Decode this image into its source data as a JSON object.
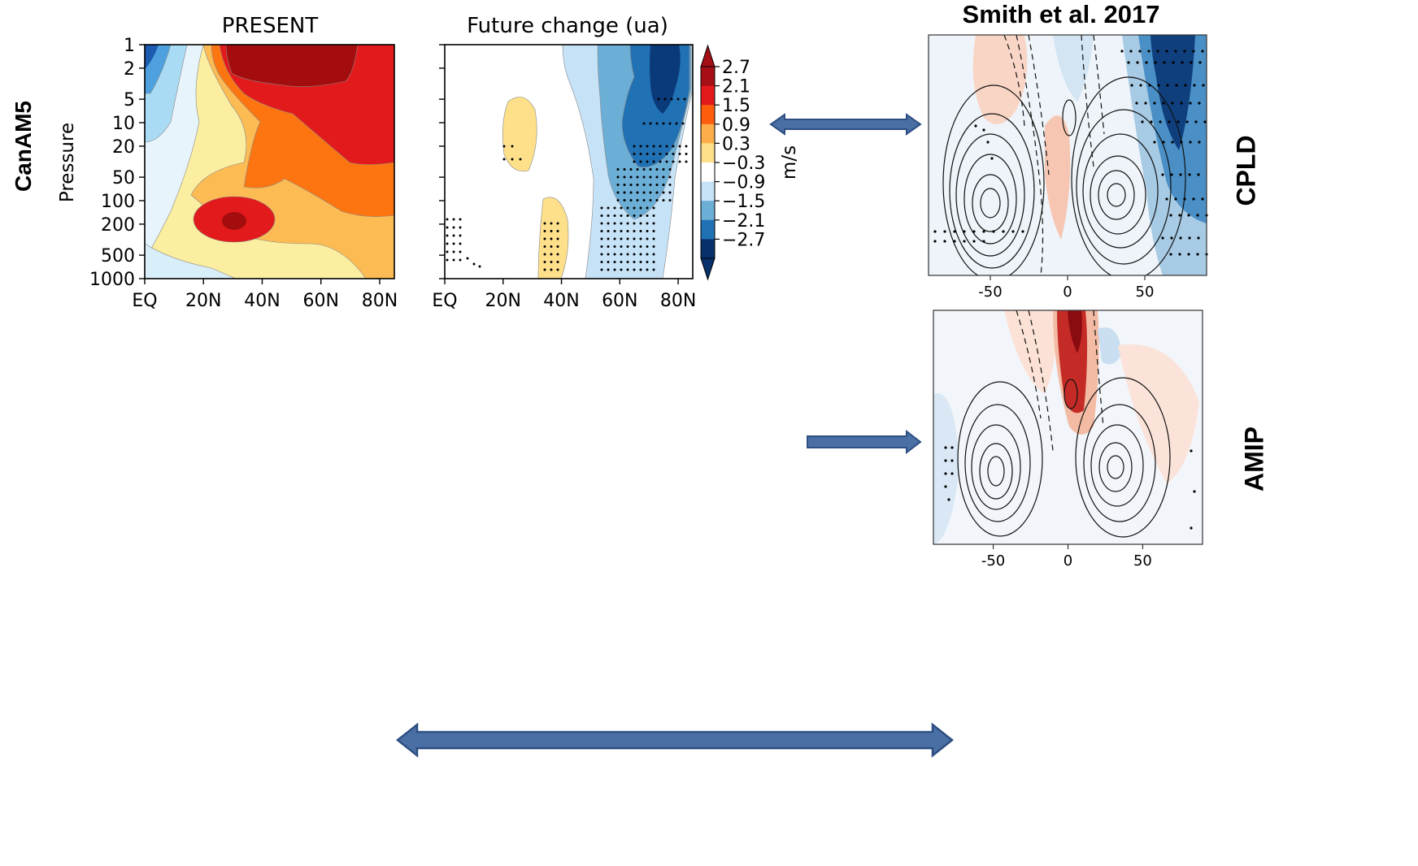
{
  "left_row_label": "CanAM5",
  "right_labels": {
    "cpld": "CPLD",
    "amip": "AMIP"
  },
  "right_title": "Smith et al. 2017",
  "chart_data": [
    {
      "type": "contour",
      "title": "PRESENT",
      "ylabel": "Pressure",
      "xlabel": "",
      "xticks": [
        "EQ",
        "20N",
        "40N",
        "60N",
        "80N"
      ],
      "x_values": [
        0,
        20,
        40,
        60,
        80
      ],
      "xlim": [
        0,
        85
      ],
      "yticks": [
        1,
        2,
        5,
        10,
        20,
        50,
        100,
        200,
        500,
        1000
      ],
      "ylim": [
        1000,
        1
      ],
      "yscale": "log"
    },
    {
      "type": "contour",
      "title": "Future change (ua)",
      "xticks": [
        "EQ",
        "20N",
        "40N",
        "60N",
        "80N"
      ],
      "x_values": [
        0,
        20,
        40,
        60,
        80
      ],
      "xlim": [
        0,
        85
      ],
      "yscale": "log",
      "colorbar": {
        "label": "m/s",
        "levels": [
          "2.7",
          "2.1",
          "1.5",
          "0.9",
          "0.3",
          "−0.3",
          "−0.9",
          "−1.5",
          "−2.1",
          "−2.7"
        ],
        "colors": [
          "#a50f15",
          "#e31a1c",
          "#fd5d0d",
          "#fdae4b",
          "#fee08b",
          "#ffffff",
          "#c6e2f7",
          "#6baed6",
          "#2171b5",
          "#08306b"
        ]
      },
      "stippling": true
    },
    {
      "type": "contour",
      "name": "CPLD",
      "xticks": [
        "-50",
        "0",
        "50"
      ],
      "x_values": [
        -50,
        0,
        50
      ],
      "xlim": [
        -90,
        90
      ]
    },
    {
      "type": "contour",
      "name": "AMIP",
      "xticks": [
        "-50",
        "0",
        "50"
      ],
      "x_values": [
        -50,
        0,
        50
      ],
      "xlim": [
        -90,
        90
      ]
    }
  ],
  "arrows": [
    {
      "direction": "both"
    },
    {
      "direction": "right"
    },
    {
      "direction": "both"
    }
  ]
}
